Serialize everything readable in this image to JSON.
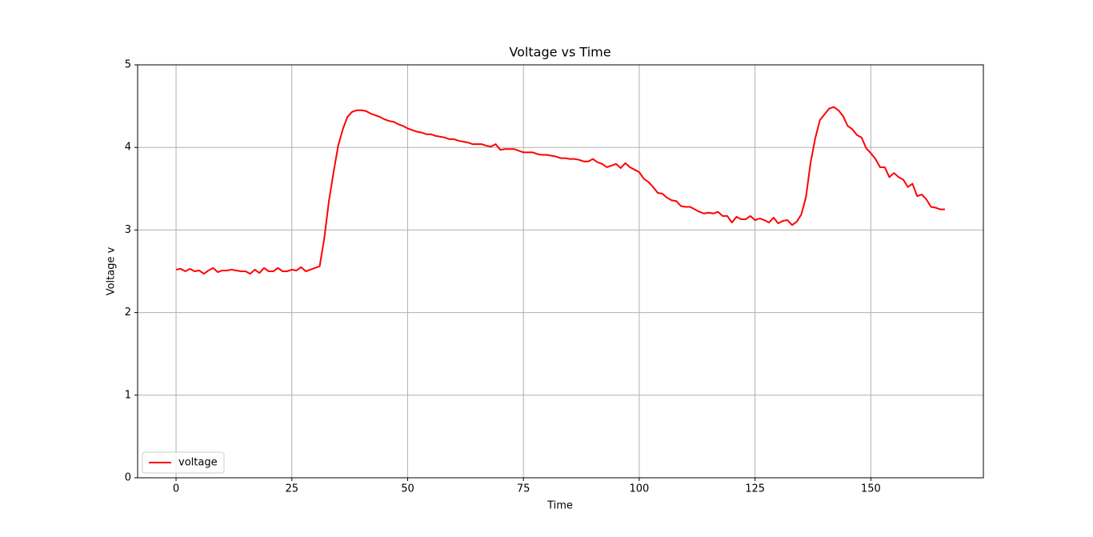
{
  "chart_data": {
    "type": "line",
    "title": "Voltage vs Time",
    "x_label": "Time",
    "y_label": "Voltage v",
    "x": [
      0,
      1,
      2,
      3,
      4,
      5,
      6,
      7,
      8,
      9,
      10,
      11,
      12,
      13,
      14,
      15,
      16,
      17,
      18,
      19,
      20,
      21,
      22,
      23,
      24,
      25,
      26,
      27,
      28,
      29,
      30,
      31,
      32,
      33,
      34,
      35,
      36,
      37,
      38,
      39,
      40,
      41,
      42,
      43,
      44,
      45,
      46,
      47,
      48,
      49,
      50,
      51,
      52,
      53,
      54,
      55,
      56,
      57,
      58,
      59,
      60,
      61,
      62,
      63,
      64,
      65,
      66,
      67,
      68,
      69,
      70,
      71,
      72,
      73,
      74,
      75,
      76,
      77,
      78,
      79,
      80,
      81,
      82,
      83,
      84,
      85,
      86,
      87,
      88,
      89,
      90,
      91,
      92,
      93,
      94,
      95,
      96,
      97,
      98,
      99,
      100,
      101,
      102,
      103,
      104,
      105,
      106,
      107,
      108,
      109,
      110,
      111,
      112,
      113,
      114,
      115,
      116,
      117,
      118,
      119,
      120,
      121,
      122,
      123,
      124,
      125,
      126,
      127,
      128,
      129,
      130,
      131,
      132,
      133,
      134,
      135,
      136,
      137,
      138,
      139,
      140,
      141,
      142,
      143,
      144,
      145,
      146,
      147,
      148,
      149,
      150,
      151,
      152,
      153,
      154,
      155,
      156,
      157,
      158,
      159,
      160,
      161,
      162,
      163,
      164,
      165,
      166
    ],
    "series": [
      {
        "name": "voltage",
        "color": "#ff0000",
        "values": [
          2.52,
          2.53,
          2.5,
          2.53,
          2.5,
          2.51,
          2.47,
          2.51,
          2.54,
          2.49,
          2.51,
          2.51,
          2.52,
          2.51,
          2.5,
          2.5,
          2.47,
          2.52,
          2.48,
          2.54,
          2.5,
          2.5,
          2.54,
          2.5,
          2.5,
          2.52,
          2.51,
          2.55,
          2.5,
          2.52,
          2.54,
          2.56,
          2.9,
          3.35,
          3.7,
          4.02,
          4.22,
          4.37,
          4.43,
          4.45,
          4.45,
          4.44,
          4.41,
          4.39,
          4.37,
          4.34,
          4.32,
          4.31,
          4.28,
          4.26,
          4.23,
          4.21,
          4.19,
          4.18,
          4.16,
          4.16,
          4.14,
          4.13,
          4.12,
          4.1,
          4.1,
          4.08,
          4.07,
          4.06,
          4.04,
          4.04,
          4.04,
          4.02,
          4.01,
          4.04,
          3.97,
          3.98,
          3.98,
          3.98,
          3.96,
          3.94,
          3.94,
          3.94,
          3.92,
          3.91,
          3.91,
          3.9,
          3.89,
          3.87,
          3.87,
          3.86,
          3.86,
          3.85,
          3.83,
          3.83,
          3.86,
          3.82,
          3.8,
          3.76,
          3.78,
          3.8,
          3.75,
          3.81,
          3.76,
          3.73,
          3.7,
          3.62,
          3.58,
          3.52,
          3.45,
          3.44,
          3.39,
          3.36,
          3.35,
          3.29,
          3.28,
          3.28,
          3.25,
          3.22,
          3.2,
          3.21,
          3.2,
          3.22,
          3.17,
          3.17,
          3.09,
          3.16,
          3.13,
          3.13,
          3.17,
          3.12,
          3.14,
          3.12,
          3.09,
          3.15,
          3.08,
          3.11,
          3.12,
          3.06,
          3.1,
          3.19,
          3.4,
          3.82,
          4.11,
          4.33,
          4.4,
          4.47,
          4.49,
          4.45,
          4.38,
          4.26,
          4.22,
          4.15,
          4.12,
          3.99,
          3.93,
          3.86,
          3.76,
          3.76,
          3.64,
          3.69,
          3.64,
          3.61,
          3.52,
          3.56,
          3.41,
          3.43,
          3.37,
          3.28,
          3.27,
          3.25,
          3.25
        ]
      }
    ],
    "xlim": [
      -8.3,
      174.3
    ],
    "ylim": [
      0,
      5
    ],
    "xticks": [
      0,
      25,
      50,
      75,
      100,
      125,
      150
    ],
    "yticks": [
      0,
      1,
      2,
      3,
      4,
      5
    ],
    "grid": true,
    "legend": "lower left"
  }
}
